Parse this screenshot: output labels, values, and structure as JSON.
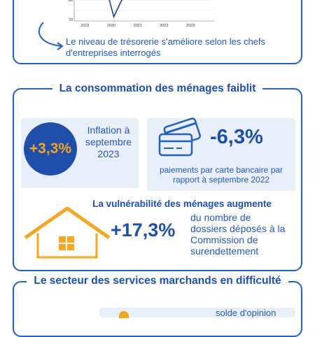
{
  "section1": {
    "note": "Le niveau de trésorerie s'améliore selon les chefs d'entreprises interrogés"
  },
  "chart_data": {
    "type": "line",
    "x_ticks": [
      "2019",
      "2020",
      "2021",
      "2022",
      "2023"
    ],
    "y_ticks": [
      "80",
      "70"
    ],
    "ylim": [
      70,
      90
    ],
    "series": [
      {
        "x": [
          2019.0,
          2019.5,
          2019.9,
          2020.1,
          2020.4,
          2020.8,
          2021.5,
          2022.0,
          2022.5,
          2023.0,
          2023.6
        ],
        "values": [
          88,
          88.5,
          87,
          73,
          85,
          88,
          89,
          88.5,
          88,
          88.2,
          88
        ]
      }
    ],
    "colors": {
      "line": "#1f3f8f"
    }
  },
  "section2": {
    "title": "La consommation des ménages faiblit",
    "inflation_value": "+3,3%",
    "inflation_text": "Inflation à septembre 2023",
    "cards_value": "-6,3%",
    "cards_text": "paiements par carte bancaire par rapport à septembre 2022",
    "vuln_title": "La vulnérabilité des ménages augmente",
    "vuln_value": "+17,3%",
    "vuln_text": "du nombre de dossiers déposés à la Commission de surendettement"
  },
  "section3": {
    "title": "Le secteur des services marchands en difficulté",
    "partial_text": "solde d'opinion"
  },
  "icons": [
    "credit-card-icon",
    "house-icon",
    "curved-arrow-icon"
  ],
  "colors": {
    "primary": "#1f4eab",
    "accent": "#f5a623",
    "light": "#e9eff8"
  }
}
